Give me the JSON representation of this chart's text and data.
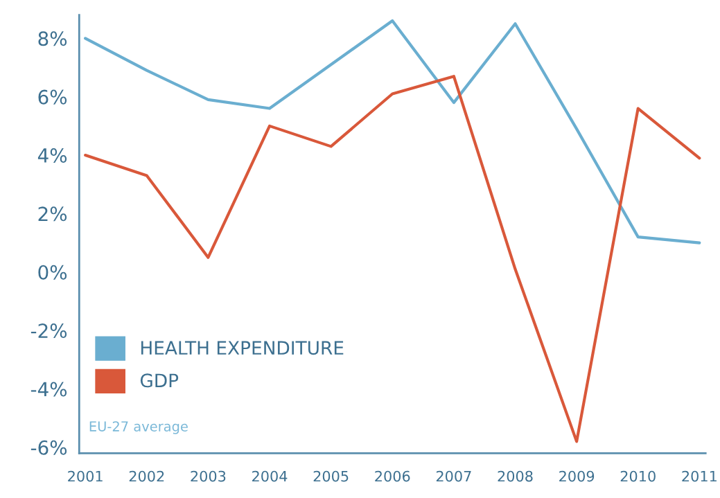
{
  "chart_data": {
    "type": "line",
    "categories": [
      "2001",
      "2002",
      "2003",
      "2004",
      "2005",
      "2006",
      "2007",
      "2008",
      "2009",
      "2010",
      "2011"
    ],
    "series": [
      {
        "name": "HEALTH EXPENDITURE",
        "color": "#6aaed0",
        "values": [
          8.0,
          6.9,
          5.9,
          5.6,
          7.1,
          8.6,
          5.8,
          8.5,
          4.9,
          1.2,
          1.0
        ]
      },
      {
        "name": "GDP",
        "color": "#d9583a",
        "values": [
          4.0,
          3.3,
          0.5,
          5.0,
          4.3,
          6.1,
          6.7,
          0.1,
          -5.8,
          5.6,
          3.9
        ]
      }
    ],
    "ylim": [
      -6.2,
      8.8
    ],
    "yticks": [
      {
        "value": 8,
        "label": "8%"
      },
      {
        "value": 6,
        "label": "6%"
      },
      {
        "value": 4,
        "label": "4%"
      },
      {
        "value": 2,
        "label": "2%"
      },
      {
        "value": 0,
        "label": "0%"
      },
      {
        "value": -2,
        "label": "-2%"
      },
      {
        "value": -4,
        "label": "-4%"
      },
      {
        "value": -6,
        "label": "-6%"
      }
    ],
    "legend": "bottom left",
    "grid": false,
    "annotations": [
      "EU-27 average"
    ]
  }
}
